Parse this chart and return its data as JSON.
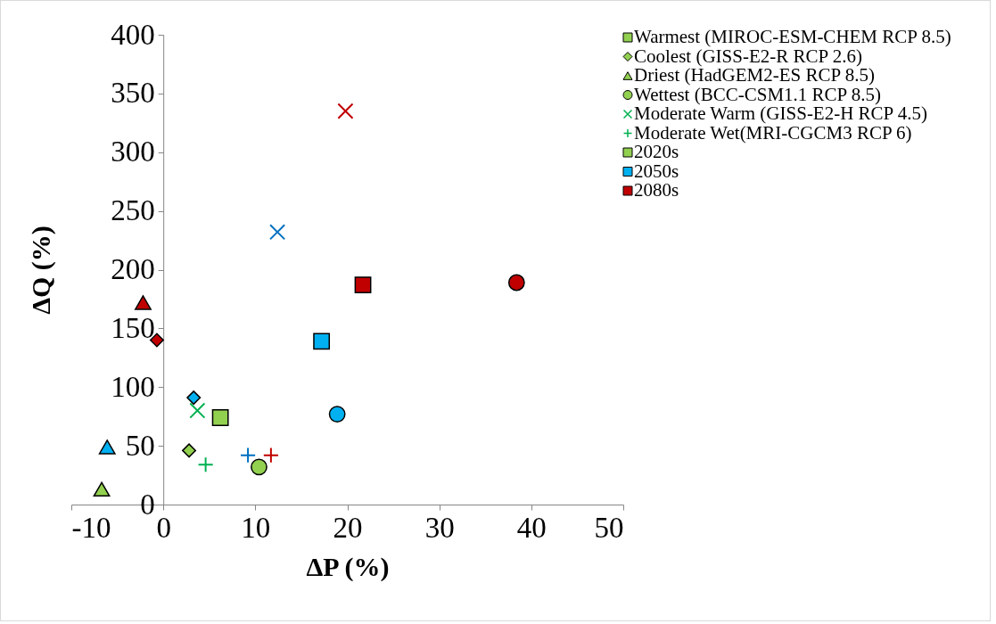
{
  "chart_data": {
    "type": "scatter",
    "xlabel": "ΔP (%)",
    "ylabel": "ΔQ (%)",
    "xlim": [
      -10,
      50
    ],
    "xticks": [
      -10,
      0,
      10,
      20,
      30,
      40,
      50
    ],
    "ylim": [
      0,
      400
    ],
    "yticks": [
      0,
      50,
      100,
      150,
      200,
      250,
      300,
      350,
      400
    ],
    "grid": false,
    "legend": "top right",
    "series": [
      {
        "name": "Warmest (MIROC-ESM-CHEM RCP 8.5)",
        "marker": "square",
        "color": "#92d050",
        "x": [
          6.2,
          17.2,
          21.7
        ],
        "values": [
          74,
          139,
          187
        ],
        "colors": [
          "#92d050",
          "#00b0f0",
          "#c00000"
        ]
      },
      {
        "name": "Coolest (GISS-E2-R RCP 2.6)",
        "marker": "diamond",
        "color": "#92d050",
        "x": [
          2.8,
          3.3,
          -0.7
        ],
        "values": [
          46,
          91,
          140
        ],
        "colors": [
          "#92d050",
          "#00b0f0",
          "#c00000"
        ]
      },
      {
        "name": "Driest (HadGEM2-ES RCP 8.5)",
        "marker": "triangle",
        "color": "#92d050",
        "x": [
          -6.7,
          -6.1,
          -2.2
        ],
        "values": [
          13,
          49,
          172
        ],
        "colors": [
          "#92d050",
          "#00b0f0",
          "#c00000"
        ]
      },
      {
        "name": "Wettest (BCC-CSM1.1 RCP 8.5)",
        "marker": "circle",
        "color": "#92d050",
        "x": [
          10.4,
          18.9,
          38.4
        ],
        "values": [
          32,
          77,
          189
        ],
        "colors": [
          "#92d050",
          "#00b0f0",
          "#c00000"
        ]
      },
      {
        "name": "Moderate Warm (GISS-E2-H RCP 4.5)",
        "marker": "x",
        "color": "#00b050",
        "x": [
          3.7,
          12.4,
          19.8
        ],
        "values": [
          80,
          232,
          335
        ],
        "colors": [
          "#00b050",
          "#0070c0",
          "#c00000"
        ]
      },
      {
        "name": "Moderate Wet(MRI-CGCM3 RCP 6)",
        "marker": "cross",
        "color": "#00b050",
        "x": [
          4.6,
          9.2,
          11.7
        ],
        "values": [
          34,
          42,
          42
        ],
        "colors": [
          "#00b050",
          "#0070c0",
          "#c00000"
        ]
      },
      {
        "name": "2020s",
        "marker": "square",
        "color": "#92d050"
      },
      {
        "name": "2050s",
        "marker": "square",
        "color": "#00b0f0"
      },
      {
        "name": "2080s",
        "marker": "square",
        "color": "#c00000"
      }
    ]
  }
}
